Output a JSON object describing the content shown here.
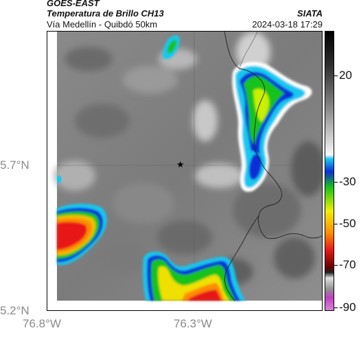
{
  "header": {
    "product": "GOES-EAST",
    "title": "Temperatura de Brillo CH13",
    "region": "Vía Medellín - Quibdó 50km",
    "organization": "SIATA",
    "timestamp": "2024-03-18 17:29"
  },
  "map": {
    "lat_labels": [
      "5.7°N",
      "5.2°N"
    ],
    "lon_labels": [
      "76.8°W",
      "76.3°W"
    ],
    "marker": "star-icon",
    "features": [
      "country-border-line",
      "gridlines",
      "brightness-temperature-field"
    ]
  },
  "colorbar": {
    "labels": [
      "20",
      "-30",
      "-50",
      "-70",
      "-90"
    ],
    "colors": {
      "white": "#ffffff",
      "cyan": "#19c8f0",
      "blue": "#0a2fd6",
      "green": "#16c21a",
      "yellow": "#f0f000",
      "orange": "#ff8c00",
      "red": "#e81818",
      "darkred": "#6b0000",
      "magenta": "#c040c0"
    }
  }
}
